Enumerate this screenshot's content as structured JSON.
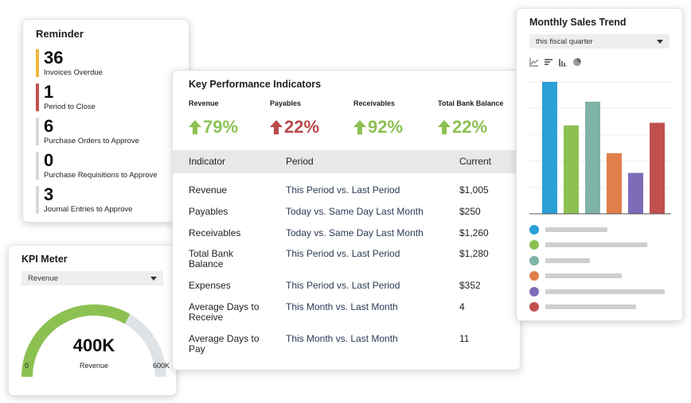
{
  "reminder": {
    "title": "Reminder",
    "items": [
      {
        "count": "36",
        "label": "Invoices Overdue",
        "color": "#f0b53c"
      },
      {
        "count": "1",
        "label": "Period to Close",
        "color": "#c0504d"
      },
      {
        "count": "6",
        "label": "Purchase Orders to Approve",
        "color": "#d8d8d8"
      },
      {
        "count": "0",
        "label": "Purchase Requisitions to Approve",
        "color": "#d8d8d8"
      },
      {
        "count": "3",
        "label": "Journal Entries to Approve",
        "color": "#d8d8d8"
      }
    ]
  },
  "kpi_meter": {
    "title": "KPI Meter",
    "selected": "Revenue",
    "value": "400K",
    "label": "Revenue",
    "min": "0",
    "max": "600K",
    "fill_fraction": 0.667,
    "fill_color": "#8cc152",
    "track_color": "#dfe3e6"
  },
  "kpi": {
    "title": "Key Performance Indicators",
    "stats": [
      {
        "label": "Revenue",
        "value": "79%",
        "direction": "up",
        "color": "#8cc152"
      },
      {
        "label": "Payables",
        "value": "22%",
        "direction": "up",
        "color": "#b84a4a"
      },
      {
        "label": "Receivables",
        "value": "92%",
        "direction": "up",
        "color": "#8cc152"
      },
      {
        "label": "Total Bank Balance",
        "value": "22%",
        "direction": "up",
        "color": "#8cc152"
      }
    ],
    "columns": {
      "indicator": "Indicator",
      "period": "Period",
      "current": "Current"
    },
    "rows": [
      {
        "indicator": "Revenue",
        "period": "This Period vs. Last Period",
        "current": "$1,005"
      },
      {
        "indicator": "Payables",
        "period": "Today vs. Same Day Last Month",
        "current": "$250"
      },
      {
        "indicator": "Receivables",
        "period": "Today vs. Same Day Last Month",
        "current": "$1,260"
      },
      {
        "indicator": "Total Bank Balance",
        "period": "This Period vs. Last Period",
        "current": "$1,280"
      },
      {
        "indicator": "Expenses",
        "period": "This Period vs. Last Period",
        "current": "$352"
      },
      {
        "indicator": "Average Days to Receive",
        "period": "This Month vs. Last Month",
        "current": "4"
      },
      {
        "indicator": "Average Days to Pay",
        "period": "This Month vs. Last Month",
        "current": "11"
      }
    ]
  },
  "sales": {
    "title": "Monthly Sales Trend",
    "selected": "this fiscal quarter",
    "icons": [
      "line-chart-icon",
      "bar-horizontal-icon",
      "bar-vertical-icon",
      "pie-chart-icon"
    ]
  },
  "chart_data": {
    "type": "bar",
    "categories": [
      "",
      "",
      "",
      "",
      "",
      ""
    ],
    "values": [
      100,
      67,
      85,
      46,
      31,
      69
    ],
    "ylim": [
      0,
      100
    ],
    "grid": true,
    "colors": [
      "#2a9fd8",
      "#8cc152",
      "#7fb3a8",
      "#e07f4a",
      "#7e6bb8",
      "#c0504d"
    ],
    "legend_placement": "bottom"
  }
}
